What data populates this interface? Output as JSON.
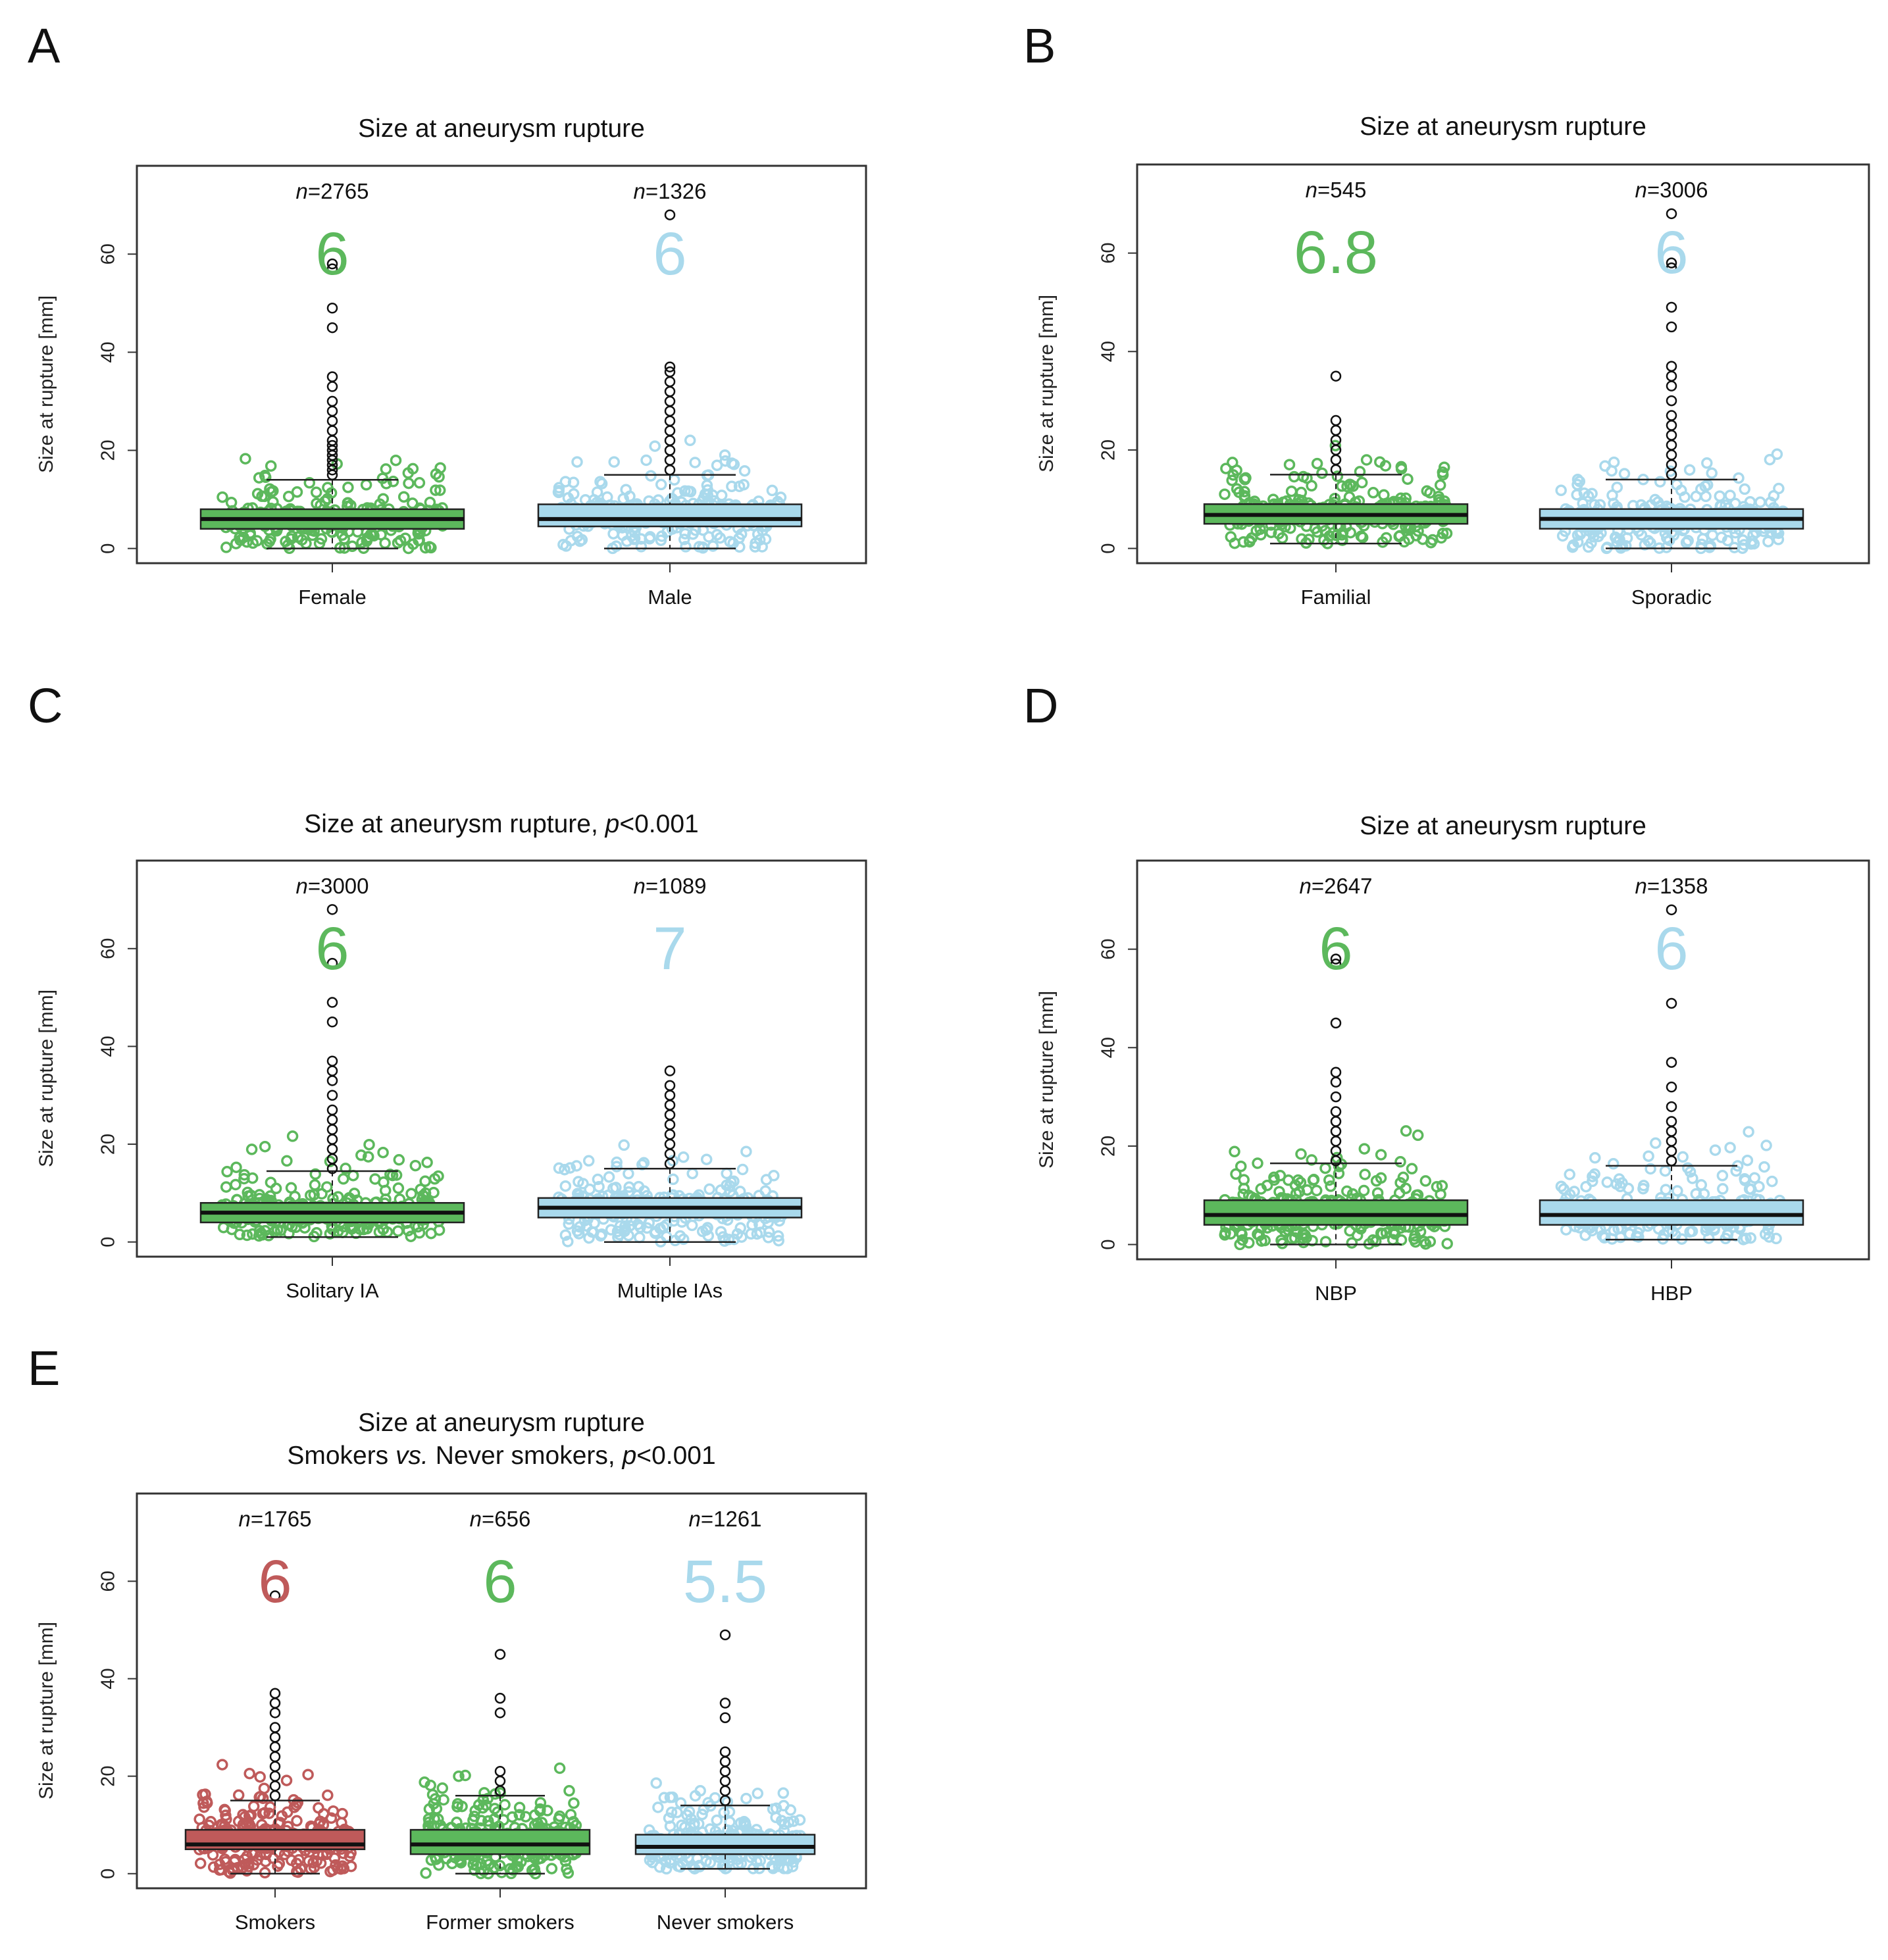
{
  "colors": {
    "green": "#5cb85c",
    "blue": "#a9d9ec",
    "red": "#bf5a5a",
    "frame": "#333333"
  },
  "y_axis": {
    "ylabel": "Size at rupture [mm]",
    "ticks": [
      0,
      20,
      40,
      60
    ],
    "ylim": [
      -3,
      78
    ]
  },
  "chart_data": [
    {
      "panel": "A",
      "type": "box",
      "title": "Size at aneurysm rupture",
      "title_line2": "",
      "ylabel": "Size at rupture [mm]",
      "groups": [
        {
          "category": "Female",
          "n_label": "=2765",
          "median_label": "6",
          "color": "green",
          "min": 0,
          "q1": 4,
          "median": 6,
          "q3": 8,
          "whisker_high": 14,
          "whisker_low": 0,
          "outliers": [
            15,
            16,
            17,
            18,
            19,
            20,
            21,
            22,
            24,
            26,
            28,
            30,
            33,
            35,
            45,
            49,
            57,
            58
          ]
        },
        {
          "category": "Male",
          "n_label": "=1326",
          "median_label": "6",
          "color": "blue",
          "min": 0,
          "q1": 4.5,
          "median": 6,
          "q3": 9,
          "whisker_high": 15,
          "whisker_low": 0,
          "outliers": [
            16,
            18,
            20,
            22,
            24,
            26,
            28,
            30,
            32,
            34,
            36,
            37,
            68
          ]
        }
      ]
    },
    {
      "panel": "B",
      "type": "box",
      "title": "Size at aneurysm rupture",
      "title_line2": "",
      "ylabel": "Size at rupture [mm]",
      "groups": [
        {
          "category": "Familial",
          "n_label": "=545",
          "median_label": "6.8",
          "color": "green",
          "min": 1,
          "q1": 5,
          "median": 6.8,
          "q3": 9,
          "whisker_high": 15,
          "whisker_low": 1,
          "outliers": [
            16,
            18,
            20,
            22,
            24,
            26,
            35
          ]
        },
        {
          "category": "Sporadic",
          "n_label": "=3006",
          "median_label": "6",
          "color": "blue",
          "min": 0,
          "q1": 4,
          "median": 6,
          "q3": 8,
          "whisker_high": 14,
          "whisker_low": 0,
          "outliers": [
            15,
            17,
            19,
            21,
            23,
            25,
            27,
            30,
            33,
            35,
            37,
            45,
            49,
            57,
            58,
            68
          ]
        }
      ]
    },
    {
      "panel": "C",
      "type": "box",
      "title": "Size at aneurysm rupture, ",
      "title_italic": "p",
      "title_tail": "<0.001",
      "title_line2": "",
      "ylabel": "Size at rupture [mm]",
      "groups": [
        {
          "category": "Solitary IA",
          "n_label": "=3000",
          "median_label": "6",
          "color": "green",
          "min": 1,
          "q1": 4,
          "median": 6,
          "q3": 8,
          "whisker_high": 14.5,
          "whisker_low": 1,
          "outliers": [
            15,
            17,
            19,
            21,
            23,
            25,
            27,
            30,
            33,
            35,
            37,
            45,
            49,
            57,
            68
          ]
        },
        {
          "category": "Multiple IAs",
          "n_label": "=1089",
          "median_label": "7",
          "color": "blue",
          "min": 0,
          "q1": 5,
          "median": 7,
          "q3": 9,
          "whisker_high": 15,
          "whisker_low": 0,
          "outliers": [
            16,
            18,
            20,
            22,
            24,
            26,
            28,
            30,
            32,
            35
          ]
        }
      ]
    },
    {
      "panel": "D",
      "type": "box",
      "title": "Size at aneurysm rupture",
      "title_line2": "",
      "ylabel": "Size at rupture [mm]",
      "groups": [
        {
          "category": "NBP",
          "n_label": "=2647",
          "median_label": "6",
          "color": "green",
          "min": 0,
          "q1": 4,
          "median": 6,
          "q3": 9,
          "whisker_high": 16.5,
          "whisker_low": 0,
          "outliers": [
            17,
            19,
            21,
            23,
            25,
            27,
            30,
            33,
            35,
            45,
            57,
            58
          ]
        },
        {
          "category": "HBP",
          "n_label": "=1358",
          "median_label": "6",
          "color": "blue",
          "min": 1,
          "q1": 4,
          "median": 6,
          "q3": 9,
          "whisker_high": 16,
          "whisker_low": 1,
          "outliers": [
            17,
            19,
            21,
            23,
            25,
            28,
            32,
            37,
            49,
            68
          ]
        }
      ]
    },
    {
      "panel": "E",
      "type": "box",
      "title": "Size at aneurysm rupture",
      "title_line2_pre": "Smokers ",
      "title_line2_italic": "vs.",
      "title_line2_mid": " Never smokers, ",
      "title_line2_italic2": "p",
      "title_line2_tail": "<0.001",
      "ylabel": "Size at rupture [mm]",
      "groups": [
        {
          "category": "Smokers",
          "n_label": "=1765",
          "median_label": "6",
          "color": "red",
          "min": 0,
          "q1": 5,
          "median": 6,
          "q3": 9,
          "whisker_high": 15,
          "whisker_low": 0,
          "outliers": [
            16,
            18,
            20,
            22,
            24,
            26,
            28,
            30,
            33,
            35,
            37,
            57
          ]
        },
        {
          "category": "Former smokers",
          "n_label": "=656",
          "median_label": "6",
          "color": "green",
          "min": 0,
          "q1": 4,
          "median": 6,
          "q3": 9,
          "whisker_high": 16,
          "whisker_low": 0,
          "outliers": [
            17,
            19,
            21,
            33,
            36,
            45
          ]
        },
        {
          "category": "Never smokers",
          "n_label": "=1261",
          "median_label": "5.5",
          "color": "blue",
          "min": 1,
          "q1": 4,
          "median": 5.5,
          "q3": 8,
          "whisker_high": 14,
          "whisker_low": 1,
          "outliers": [
            15,
            17,
            19,
            21,
            23,
            25,
            32,
            35,
            49
          ]
        }
      ]
    }
  ]
}
